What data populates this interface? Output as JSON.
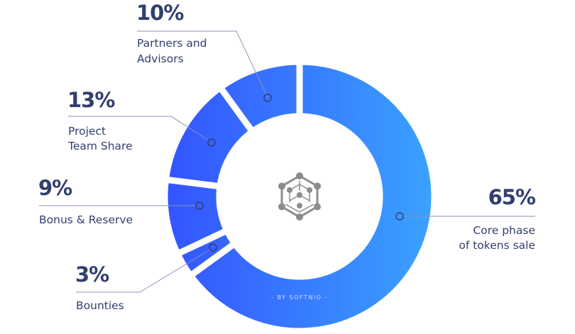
{
  "chart_data": {
    "type": "pie",
    "variant": "donut",
    "slices": [
      {
        "label": "Core phase of tokens sale",
        "lines": [
          "Core phase",
          "of tokens sale"
        ],
        "value": 65,
        "display": "65%"
      },
      {
        "label": "Bounties",
        "lines": [
          "Bounties"
        ],
        "value": 3,
        "display": "3%"
      },
      {
        "label": "Bonus & Reserve",
        "lines": [
          "Bonus & Reserve"
        ],
        "value": 9,
        "display": "9%"
      },
      {
        "label": "Project Team Share",
        "lines": [
          "Project",
          "Team Share"
        ],
        "value": 13,
        "display": "13%"
      },
      {
        "label": "Partners and Advisors",
        "lines": [
          "Partners and",
          "Advisors"
        ],
        "value": 10,
        "display": "10%"
      }
    ],
    "direction": "clockwise from top",
    "colors": {
      "gradient_start": "#3453ff",
      "gradient_end": "#3aa3ff",
      "text": "#323f6e",
      "center_icon": "#8c8c8c"
    },
    "center_icon": "hexagon-network-cube-icon",
    "credit": "- BY SOFTNIO -"
  }
}
